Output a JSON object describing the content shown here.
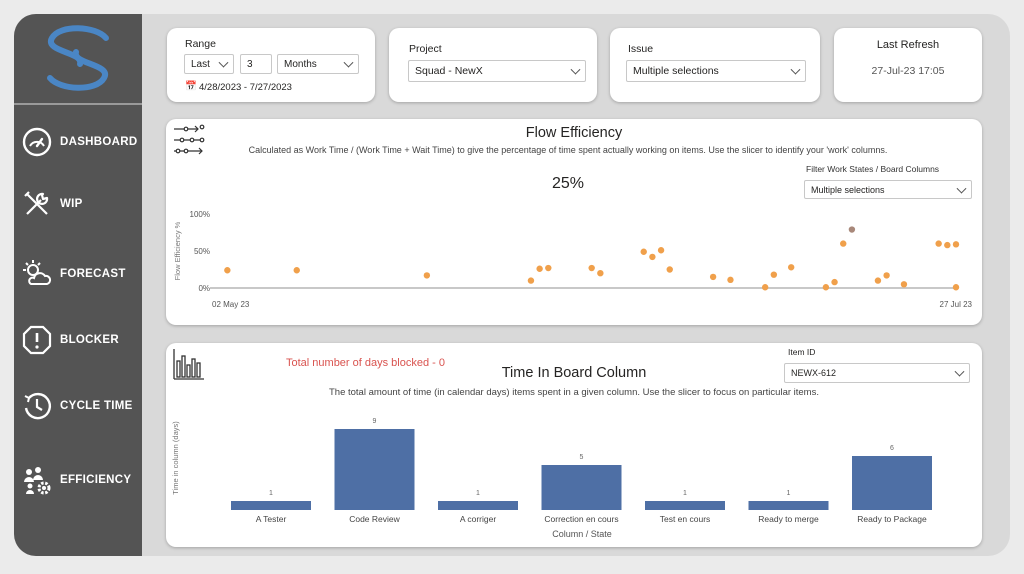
{
  "sidebar": {
    "items": [
      {
        "label": "DASHBOARD",
        "icon": "gauge-icon"
      },
      {
        "label": "WIP",
        "icon": "tools-icon"
      },
      {
        "label": "FORECAST",
        "icon": "weather-icon"
      },
      {
        "label": "BLOCKER",
        "icon": "alert-icon"
      },
      {
        "label": "CYCLE TIME",
        "icon": "clock-icon"
      },
      {
        "label": "EFFICIENCY",
        "icon": "team-gear-icon"
      }
    ]
  },
  "filters": {
    "range": {
      "title": "Range",
      "mode": "Last",
      "count": "3",
      "unit": "Months",
      "dates": "4/28/2023 - 7/27/2023"
    },
    "project": {
      "title": "Project",
      "value": "Squad - NewX"
    },
    "issue": {
      "title": "Issue",
      "value": "Multiple selections"
    },
    "refresh": {
      "title": "Last Refresh",
      "value": "27-Jul-23 17:05"
    }
  },
  "flow": {
    "title": "Flow Efficiency",
    "description": "Calculated as Work Time / (Work Time + Wait Time) to give the percentage of time spent actually working on items. Use the slicer to identify your 'work' columns.",
    "kpi": "25%",
    "filter_label": "Filter Work States / Board Columns",
    "filter_value": "Multiple selections"
  },
  "board": {
    "blocked_text": "Total number of days blocked - 0",
    "title": "Time In Board Column",
    "description": "The total amount of time (in calendar days) items spent in a given column. Use the slicer to focus on particular items.",
    "item_label": "Item ID",
    "item_value": "NEWX-612"
  },
  "colors": {
    "accent_blue": "#4e6fa5",
    "dot_orange": "#f0a04b",
    "dot_brown": "#a8887a",
    "blocked_red": "#d9534f",
    "sidebar": "#545454"
  },
  "chart_data": [
    {
      "type": "scatter",
      "title": "",
      "ylabel": "Flow Efficiency %",
      "xlabel": "",
      "x_tick_labels": [
        "02 May 23",
        "27 Jul 23"
      ],
      "y_tick_labels": [
        "100%",
        "50%",
        "0%"
      ],
      "xlim": [
        "2023-05-02",
        "2023-07-27"
      ],
      "ylim": [
        0,
        100
      ],
      "points": [
        {
          "x": "2023-05-04",
          "y": 24
        },
        {
          "x": "2023-05-12",
          "y": 24
        },
        {
          "x": "2023-05-27",
          "y": 17
        },
        {
          "x": "2023-06-08",
          "y": 10
        },
        {
          "x": "2023-06-09",
          "y": 26
        },
        {
          "x": "2023-06-10",
          "y": 27
        },
        {
          "x": "2023-06-15",
          "y": 27
        },
        {
          "x": "2023-06-16",
          "y": 20
        },
        {
          "x": "2023-06-21",
          "y": 49
        },
        {
          "x": "2023-06-22",
          "y": 42
        },
        {
          "x": "2023-06-23",
          "y": 51
        },
        {
          "x": "2023-06-24",
          "y": 25
        },
        {
          "x": "2023-06-29",
          "y": 15
        },
        {
          "x": "2023-07-01",
          "y": 11
        },
        {
          "x": "2023-07-05",
          "y": 1
        },
        {
          "x": "2023-07-06",
          "y": 18
        },
        {
          "x": "2023-07-08",
          "y": 28
        },
        {
          "x": "2023-07-12",
          "y": 1
        },
        {
          "x": "2023-07-13",
          "y": 8
        },
        {
          "x": "2023-07-14",
          "y": 60
        },
        {
          "x": "2023-07-15",
          "y": 79,
          "highlight": true
        },
        {
          "x": "2023-07-18",
          "y": 10
        },
        {
          "x": "2023-07-19",
          "y": 17
        },
        {
          "x": "2023-07-21",
          "y": 5
        },
        {
          "x": "2023-07-25",
          "y": 60
        },
        {
          "x": "2023-07-26",
          "y": 58
        },
        {
          "x": "2023-07-27",
          "y": 59
        },
        {
          "x": "2023-07-27",
          "y": 1
        }
      ],
      "grid": false
    },
    {
      "type": "bar",
      "title": "",
      "xlabel": "Column / State",
      "ylabel": "Time in column (days)",
      "categories": [
        "A Tester",
        "Code Review",
        "A corriger",
        "Correction en cours",
        "Test en cours",
        "Ready to merge",
        "Ready to Package"
      ],
      "values": [
        1,
        9,
        1,
        5,
        1,
        1,
        6
      ],
      "ylim": [
        0,
        10
      ],
      "grid": false
    }
  ]
}
